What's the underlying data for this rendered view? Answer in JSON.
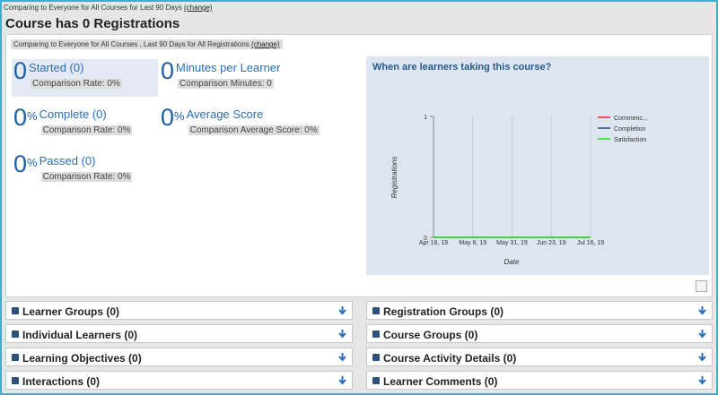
{
  "header": {
    "comparing": "Comparing to Everyone for All Courses for Last 90 Days",
    "change": "(change)",
    "title": "Course has 0 Registrations"
  },
  "summary": {
    "comparing": "Comparing to Everyone for All Courses , Last 90 Days for All Registrations",
    "change": "(change)"
  },
  "stats": [
    {
      "value": 0,
      "label": "Started (0)",
      "comparison": "Comparison Rate: 0%"
    },
    {
      "value": 0,
      "label": "Minutes per Learner",
      "comparison": "Comparison Minutes: 0"
    },
    {
      "value": 0,
      "unit": "%",
      "label": "Complete (0)",
      "comparison": "Comparison Rate: 0%"
    },
    {
      "value": 0,
      "unit": "%",
      "label": "Average Score",
      "comparison": "Comparison Average Score: 0%"
    },
    {
      "value": 0,
      "unit": "%",
      "label": "Passed (0)",
      "comparison": "Comparison Rate: 0%"
    }
  ],
  "chart_data": {
    "type": "line",
    "title": "When are learners taking this course?",
    "x_label": "Date",
    "y_label": "Registrations",
    "categories": [
      "Apr 16, 19",
      "May 8, 19",
      "May 31, 19",
      "Jun 23, 19",
      "Jul 16, 19"
    ],
    "ylim": [
      0,
      1
    ],
    "yticks": [
      0,
      1
    ],
    "grid": true,
    "legend": "right",
    "series": [
      {
        "name": "Commenc...",
        "color": "#e8262b",
        "values": [
          0,
          0,
          0,
          0,
          0
        ]
      },
      {
        "name": "Completion",
        "color": "#2c4a7c",
        "values": [
          0,
          0,
          0,
          0,
          0
        ]
      },
      {
        "name": "Satisfaction",
        "color": "#22dd22",
        "values": [
          0,
          0,
          0,
          0,
          0
        ]
      }
    ]
  },
  "sections": {
    "left": [
      "Learner Groups (0)",
      "Individual Learners (0)",
      "Learning Objectives (0)",
      "Interactions (0)"
    ],
    "right": [
      "Registration Groups (0)",
      "Course Groups (0)",
      "Course Activity Details (0)",
      "Learner Comments (0)"
    ]
  }
}
